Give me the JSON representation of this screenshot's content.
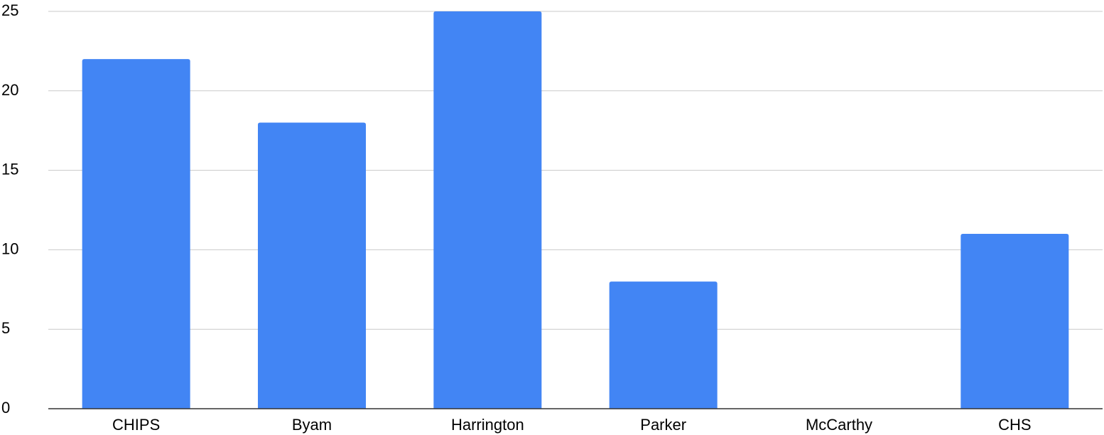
{
  "chart_data": {
    "type": "bar",
    "categories": [
      "CHIPS",
      "Byam",
      "Harrington",
      "Parker",
      "McCarthy",
      "CHS"
    ],
    "values": [
      22,
      18,
      25,
      8,
      0,
      11
    ],
    "ylim": [
      0,
      25
    ],
    "yticks": [
      0,
      5,
      10,
      15,
      20,
      25
    ],
    "title": "",
    "xlabel": "",
    "ylabel": "",
    "grid": true,
    "legend": "none",
    "colors": {
      "bar": "#4285f4",
      "grid": "#c9c9c9",
      "axis": "#333333",
      "text": "#000000"
    }
  }
}
